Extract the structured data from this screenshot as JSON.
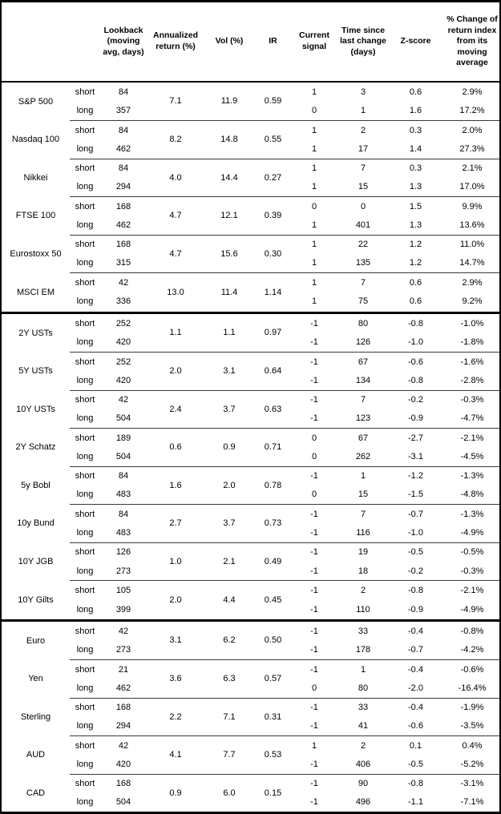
{
  "header": {
    "keys": [
      "asset",
      "horizon",
      "lookback",
      "annualized-return",
      "vol",
      "ir",
      "current-signal",
      "time-since-last-change",
      "z-score",
      "pct-change-from-moving-average"
    ],
    "columns": [
      "",
      "",
      "Lookback (moving avg, days)",
      "Annualized return (%)",
      "Vol (%)",
      "IR",
      "Current signal",
      "Time since last change (days)",
      "Z-score",
      "% Change of return index from its moving average"
    ]
  },
  "sections": [
    {
      "assets": [
        {
          "label": "S&P 500",
          "annualized_return_pct": "7.1",
          "vol_pct": "11.9",
          "ir": "0.59",
          "rows": [
            {
              "horizon": "short",
              "lookback": "84",
              "current_signal": "1",
              "time_since_last_change": "3",
              "z_score": "0.6",
              "pct_change_from_ma": "2.9%"
            },
            {
              "horizon": "long",
              "lookback": "357",
              "current_signal": "0",
              "time_since_last_change": "1",
              "z_score": "1.6",
              "pct_change_from_ma": "17.2%"
            }
          ]
        },
        {
          "label": "Nasdaq 100",
          "annualized_return_pct": "8.2",
          "vol_pct": "14.8",
          "ir": "0.55",
          "rows": [
            {
              "horizon": "short",
              "lookback": "84",
              "current_signal": "1",
              "time_since_last_change": "2",
              "z_score": "0.3",
              "pct_change_from_ma": "2.0%"
            },
            {
              "horizon": "long",
              "lookback": "462",
              "current_signal": "1",
              "time_since_last_change": "17",
              "z_score": "1.4",
              "pct_change_from_ma": "27.3%"
            }
          ]
        },
        {
          "label": "Nikkei",
          "annualized_return_pct": "4.0",
          "vol_pct": "14.4",
          "ir": "0.27",
          "rows": [
            {
              "horizon": "short",
              "lookback": "84",
              "current_signal": "1",
              "time_since_last_change": "7",
              "z_score": "0.3",
              "pct_change_from_ma": "2.1%"
            },
            {
              "horizon": "long",
              "lookback": "294",
              "current_signal": "1",
              "time_since_last_change": "15",
              "z_score": "1.3",
              "pct_change_from_ma": "17.0%"
            }
          ]
        },
        {
          "label": "FTSE 100",
          "annualized_return_pct": "4.7",
          "vol_pct": "12.1",
          "ir": "0.39",
          "rows": [
            {
              "horizon": "short",
              "lookback": "168",
              "current_signal": "0",
              "time_since_last_change": "0",
              "z_score": "1.5",
              "pct_change_from_ma": "9.9%"
            },
            {
              "horizon": "long",
              "lookback": "462",
              "current_signal": "1",
              "time_since_last_change": "401",
              "z_score": "1.3",
              "pct_change_from_ma": "13.6%"
            }
          ]
        },
        {
          "label": "Eurostoxx 50",
          "annualized_return_pct": "4.7",
          "vol_pct": "15.6",
          "ir": "0.30",
          "rows": [
            {
              "horizon": "short",
              "lookback": "168",
              "current_signal": "1",
              "time_since_last_change": "22",
              "z_score": "1.2",
              "pct_change_from_ma": "11.0%"
            },
            {
              "horizon": "long",
              "lookback": "315",
              "current_signal": "1",
              "time_since_last_change": "135",
              "z_score": "1.2",
              "pct_change_from_ma": "14.7%"
            }
          ]
        },
        {
          "label": "MSCI EM",
          "annualized_return_pct": "13.0",
          "vol_pct": "11.4",
          "ir": "1.14",
          "rows": [
            {
              "horizon": "short",
              "lookback": "42",
              "current_signal": "1",
              "time_since_last_change": "7",
              "z_score": "0.6",
              "pct_change_from_ma": "2.9%"
            },
            {
              "horizon": "long",
              "lookback": "336",
              "current_signal": "1",
              "time_since_last_change": "75",
              "z_score": "0.6",
              "pct_change_from_ma": "9.2%"
            }
          ]
        }
      ]
    },
    {
      "assets": [
        {
          "label": "2Y USTs",
          "annualized_return_pct": "1.1",
          "vol_pct": "1.1",
          "ir": "0.97",
          "rows": [
            {
              "horizon": "short",
              "lookback": "252",
              "current_signal": "-1",
              "time_since_last_change": "80",
              "z_score": "-0.8",
              "pct_change_from_ma": "-1.0%"
            },
            {
              "horizon": "long",
              "lookback": "420",
              "current_signal": "-1",
              "time_since_last_change": "126",
              "z_score": "-1.0",
              "pct_change_from_ma": "-1.8%"
            }
          ]
        },
        {
          "label": "5Y USTs",
          "annualized_return_pct": "2.0",
          "vol_pct": "3.1",
          "ir": "0.64",
          "rows": [
            {
              "horizon": "short",
              "lookback": "252",
              "current_signal": "-1",
              "time_since_last_change": "67",
              "z_score": "-0.6",
              "pct_change_from_ma": "-1.6%"
            },
            {
              "horizon": "long",
              "lookback": "420",
              "current_signal": "-1",
              "time_since_last_change": "134",
              "z_score": "-0.8",
              "pct_change_from_ma": "-2.8%"
            }
          ]
        },
        {
          "label": "10Y USTs",
          "annualized_return_pct": "2.4",
          "vol_pct": "3.7",
          "ir": "0.63",
          "rows": [
            {
              "horizon": "short",
              "lookback": "42",
              "current_signal": "-1",
              "time_since_last_change": "7",
              "z_score": "-0.2",
              "pct_change_from_ma": "-0.3%"
            },
            {
              "horizon": "long",
              "lookback": "504",
              "current_signal": "-1",
              "time_since_last_change": "123",
              "z_score": "-0.9",
              "pct_change_from_ma": "-4.7%"
            }
          ]
        },
        {
          "label": "2Y Schatz",
          "annualized_return_pct": "0.6",
          "vol_pct": "0.9",
          "ir": "0.71",
          "rows": [
            {
              "horizon": "short",
              "lookback": "189",
              "current_signal": "0",
              "time_since_last_change": "67",
              "z_score": "-2.7",
              "pct_change_from_ma": "-2.1%"
            },
            {
              "horizon": "long",
              "lookback": "504",
              "current_signal": "0",
              "time_since_last_change": "262",
              "z_score": "-3.1",
              "pct_change_from_ma": "-4.5%"
            }
          ]
        },
        {
          "label": "5y Bobl",
          "annualized_return_pct": "1.6",
          "vol_pct": "2.0",
          "ir": "0.78",
          "rows": [
            {
              "horizon": "short",
              "lookback": "84",
              "current_signal": "-1",
              "time_since_last_change": "1",
              "z_score": "-1.2",
              "pct_change_from_ma": "-1.3%"
            },
            {
              "horizon": "long",
              "lookback": "483",
              "current_signal": "0",
              "time_since_last_change": "15",
              "z_score": "-1.5",
              "pct_change_from_ma": "-4.8%"
            }
          ]
        },
        {
          "label": "10y Bund",
          "annualized_return_pct": "2.7",
          "vol_pct": "3.7",
          "ir": "0.73",
          "rows": [
            {
              "horizon": "short",
              "lookback": "84",
              "current_signal": "-1",
              "time_since_last_change": "7",
              "z_score": "-0.7",
              "pct_change_from_ma": "-1.3%"
            },
            {
              "horizon": "long",
              "lookback": "483",
              "current_signal": "-1",
              "time_since_last_change": "116",
              "z_score": "-1.0",
              "pct_change_from_ma": "-4.9%"
            }
          ]
        },
        {
          "label": "10Y JGB",
          "annualized_return_pct": "1.0",
          "vol_pct": "2.1",
          "ir": "0.49",
          "rows": [
            {
              "horizon": "short",
              "lookback": "126",
              "current_signal": "-1",
              "time_since_last_change": "19",
              "z_score": "-0.5",
              "pct_change_from_ma": "-0.5%"
            },
            {
              "horizon": "long",
              "lookback": "273",
              "current_signal": "-1",
              "time_since_last_change": "18",
              "z_score": "-0.2",
              "pct_change_from_ma": "-0.3%"
            }
          ]
        },
        {
          "label": "10Y Gilts",
          "annualized_return_pct": "2.0",
          "vol_pct": "4.4",
          "ir": "0.45",
          "rows": [
            {
              "horizon": "short",
              "lookback": "105",
              "current_signal": "-1",
              "time_since_last_change": "2",
              "z_score": "-0.8",
              "pct_change_from_ma": "-2.1%"
            },
            {
              "horizon": "long",
              "lookback": "399",
              "current_signal": "-1",
              "time_since_last_change": "110",
              "z_score": "-0.9",
              "pct_change_from_ma": "-4.9%"
            }
          ]
        }
      ]
    },
    {
      "assets": [
        {
          "label": "Euro",
          "annualized_return_pct": "3.1",
          "vol_pct": "6.2",
          "ir": "0.50",
          "rows": [
            {
              "horizon": "short",
              "lookback": "42",
              "current_signal": "-1",
              "time_since_last_change": "33",
              "z_score": "-0.4",
              "pct_change_from_ma": "-0.8%"
            },
            {
              "horizon": "long",
              "lookback": "273",
              "current_signal": "-1",
              "time_since_last_change": "178",
              "z_score": "-0.7",
              "pct_change_from_ma": "-4.2%"
            }
          ]
        },
        {
          "label": "Yen",
          "annualized_return_pct": "3.6",
          "vol_pct": "6.3",
          "ir": "0.57",
          "rows": [
            {
              "horizon": "short",
              "lookback": "21",
              "current_signal": "-1",
              "time_since_last_change": "1",
              "z_score": "-0.4",
              "pct_change_from_ma": "-0.6%"
            },
            {
              "horizon": "long",
              "lookback": "462",
              "current_signal": "0",
              "time_since_last_change": "80",
              "z_score": "-2.0",
              "pct_change_from_ma": "-16.4%"
            }
          ]
        },
        {
          "label": "Sterling",
          "annualized_return_pct": "2.2",
          "vol_pct": "7.1",
          "ir": "0.31",
          "rows": [
            {
              "horizon": "short",
              "lookback": "168",
              "current_signal": "-1",
              "time_since_last_change": "33",
              "z_score": "-0.4",
              "pct_change_from_ma": "-1.9%"
            },
            {
              "horizon": "long",
              "lookback": "294",
              "current_signal": "-1",
              "time_since_last_change": "41",
              "z_score": "-0.6",
              "pct_change_from_ma": "-3.5%"
            }
          ]
        },
        {
          "label": "AUD",
          "annualized_return_pct": "4.1",
          "vol_pct": "7.7",
          "ir": "0.53",
          "rows": [
            {
              "horizon": "short",
              "lookback": "42",
              "current_signal": "1",
              "time_since_last_change": "2",
              "z_score": "0.1",
              "pct_change_from_ma": "0.4%"
            },
            {
              "horizon": "long",
              "lookback": "420",
              "current_signal": "-1",
              "time_since_last_change": "406",
              "z_score": "-0.5",
              "pct_change_from_ma": "-5.2%"
            }
          ]
        },
        {
          "label": "CAD",
          "annualized_return_pct": "0.9",
          "vol_pct": "6.0",
          "ir": "0.15",
          "rows": [
            {
              "horizon": "short",
              "lookback": "168",
              "current_signal": "-1",
              "time_since_last_change": "90",
              "z_score": "-0.8",
              "pct_change_from_ma": "-3.1%"
            },
            {
              "horizon": "long",
              "lookback": "504",
              "current_signal": "-1",
              "time_since_last_change": "496",
              "z_score": "-1.1",
              "pct_change_from_ma": "-7.1%"
            }
          ]
        }
      ]
    }
  ]
}
